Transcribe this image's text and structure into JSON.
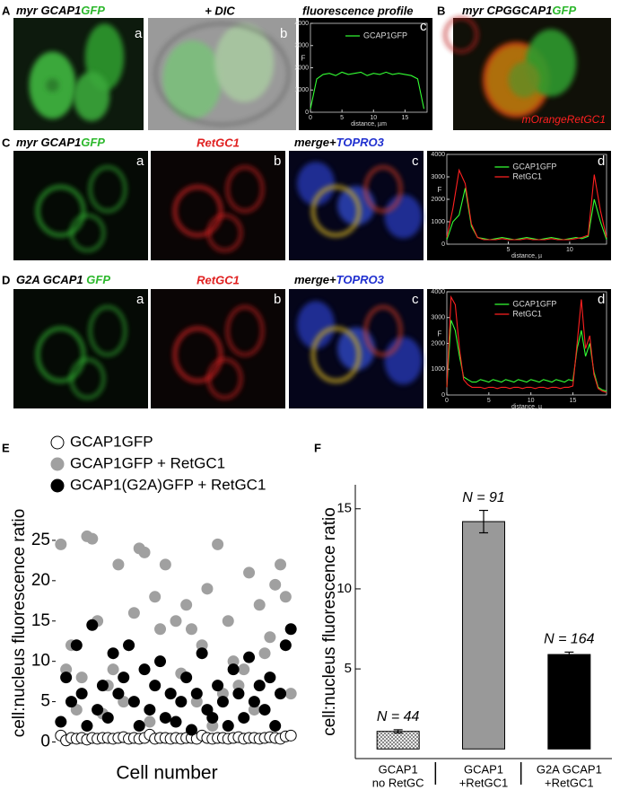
{
  "figure": {
    "panel_labels": [
      "A",
      "B",
      "C",
      "D",
      "E",
      "F"
    ],
    "row_a": {
      "titles": [
        [
          "myr GCAP1",
          "GFP"
        ],
        [
          "+ DIC"
        ],
        [
          "fluorescence profile"
        ]
      ],
      "letters": [
        "a",
        "b",
        "c"
      ]
    },
    "panel_b": {
      "title": [
        "myr CPGGCAP1",
        "GFP"
      ],
      "inset": "mOrangeRetGC1"
    },
    "row_c": {
      "titles": [
        [
          "myr GCAP1",
          "GFP"
        ],
        [
          "RetGC1"
        ],
        [
          "merge+",
          "TOPRO3"
        ]
      ],
      "letters": [
        "a",
        "b",
        "c",
        "d"
      ]
    },
    "row_d": {
      "titles": [
        [
          "G2A GCAP1 ",
          "GFP"
        ],
        [
          "RetGC1"
        ],
        [
          "merge+",
          "TOPRO3"
        ]
      ],
      "letters": [
        "a",
        "b",
        "c",
        "d"
      ]
    }
  },
  "chart_data": [
    {
      "type": "line",
      "xlabel": "distance, µm",
      "ylabel": "F",
      "x": [
        0,
        1,
        2,
        3,
        4,
        5,
        6,
        7,
        8,
        9,
        10,
        11,
        12,
        13,
        14,
        15,
        16,
        17,
        18
      ],
      "xlim": [
        0,
        18.5
      ],
      "xticks": [
        0,
        5,
        10,
        15
      ],
      "ylim": [
        0,
        4000
      ],
      "yticks": [
        0,
        1000,
        2000,
        3000,
        4000
      ],
      "series": [
        {
          "name": "GCAP1GFP",
          "color": "#33ff33",
          "values": [
            150,
            1500,
            1700,
            1750,
            1650,
            1800,
            1700,
            1750,
            1800,
            1650,
            1750,
            1700,
            1800,
            1700,
            1750,
            1700,
            1650,
            1500,
            150
          ]
        }
      ]
    },
    {
      "type": "line",
      "xlabel": "distance, µ",
      "ylabel": "F",
      "x": [
        0,
        0.5,
        1,
        1.5,
        2,
        2.5,
        3,
        3.5,
        4,
        4.5,
        5,
        5.5,
        6,
        6.5,
        7,
        7.5,
        8,
        8.5,
        9,
        9.5,
        10,
        10.5,
        11,
        11.5,
        12,
        12.5,
        13
      ],
      "xlim": [
        0,
        13
      ],
      "xticks": [
        5,
        10
      ],
      "ylim": [
        0,
        4000
      ],
      "yticks": [
        0,
        1000,
        2000,
        3000,
        4000
      ],
      "series": [
        {
          "name": "GCAP1GFP",
          "color": "#33ff33",
          "values": [
            200,
            1000,
            1300,
            2500,
            800,
            300,
            250,
            200,
            250,
            300,
            250,
            200,
            250,
            300,
            250,
            200,
            250,
            300,
            250,
            200,
            250,
            300,
            250,
            350,
            2000,
            1000,
            200
          ]
        },
        {
          "name": "RetGC1",
          "color": "#ff2020",
          "values": [
            300,
            1600,
            3300,
            2700,
            900,
            300,
            200,
            200,
            200,
            250,
            200,
            200,
            200,
            250,
            200,
            200,
            200,
            250,
            200,
            200,
            200,
            250,
            300,
            400,
            3100,
            1500,
            300
          ]
        }
      ]
    },
    {
      "type": "line",
      "xlabel": "distance, µ",
      "ylabel": "F",
      "x": [
        0,
        0.5,
        1,
        1.5,
        2,
        2.5,
        3,
        3.5,
        4,
        4.5,
        5,
        5.5,
        6,
        6.5,
        7,
        7.5,
        8,
        8.5,
        9,
        9.5,
        10,
        10.5,
        11,
        11.5,
        12,
        12.5,
        13,
        13.5,
        14,
        14.5,
        15,
        15.5,
        16,
        16.5,
        17,
        17.5,
        18,
        18.5,
        19
      ],
      "xlim": [
        0,
        19
      ],
      "xticks": [
        0,
        5,
        10,
        15
      ],
      "ylim": [
        0,
        4000
      ],
      "yticks": [
        0,
        1000,
        2000,
        3000,
        4000
      ],
      "series": [
        {
          "name": "GCAP1GFP",
          "color": "#33ff33",
          "values": [
            300,
            2900,
            2500,
            1500,
            700,
            600,
            500,
            500,
            600,
            550,
            500,
            600,
            550,
            500,
            600,
            550,
            500,
            600,
            550,
            500,
            600,
            550,
            500,
            600,
            550,
            500,
            600,
            550,
            500,
            600,
            550,
            1800,
            2500,
            1500,
            2000,
            900,
            300,
            200,
            150
          ]
        },
        {
          "name": "RetGC1",
          "color": "#ff2020",
          "values": [
            300,
            3800,
            3500,
            1800,
            600,
            400,
            300,
            300,
            300,
            250,
            300,
            300,
            250,
            300,
            300,
            250,
            300,
            300,
            250,
            300,
            300,
            250,
            300,
            300,
            250,
            300,
            300,
            250,
            300,
            300,
            350,
            2000,
            3700,
            1800,
            2300,
            800,
            250,
            150,
            100
          ]
        }
      ]
    },
    {
      "type": "scatter",
      "xlabel": "Cell number",
      "ylabel": "cell:nucleus fluorescence ratio",
      "legend": "top",
      "x": [
        1,
        2,
        3,
        4,
        5,
        6,
        7,
        8,
        9,
        10,
        11,
        12,
        13,
        14,
        15,
        16,
        17,
        18,
        19,
        20,
        21,
        22,
        23,
        24,
        25,
        26,
        27,
        28,
        29,
        30,
        31,
        32,
        33,
        34,
        35,
        36,
        37,
        38,
        39,
        40,
        41,
        42,
        43,
        44,
        45
      ],
      "xlim": [
        0,
        46
      ],
      "ylim": [
        -1.5,
        31
      ],
      "yticks": [
        0,
        5,
        10,
        15,
        20,
        25
      ],
      "series": [
        {
          "name": "GCAP1GFP",
          "color": "#ffffff",
          "values": [
            0.8,
            0.2,
            0.5,
            0.4,
            0.5,
            0.3,
            0.5,
            0.4,
            0.5,
            0.5,
            0.4,
            0.5,
            0.6,
            0.4,
            0.5,
            0.4,
            0.5,
            0.9,
            0.4,
            0.5,
            0.5,
            0.4,
            0.5,
            0.4,
            0.5,
            0.5,
            0.4,
            0.8,
            0.5,
            0.4,
            0.5,
            0.5,
            0.4,
            0.5,
            0.6,
            0.4,
            0.5,
            0.5,
            0.4,
            0.5,
            0.6,
            0.5,
            0.4,
            0.7,
            0.8
          ]
        },
        {
          "name": "GCAP1GFP + RetGC1",
          "color": "#a0a0a0",
          "values": [
            24.5,
            9,
            12,
            4,
            8,
            25.5,
            25.2,
            15,
            3.5,
            7,
            9,
            22,
            5,
            12,
            16,
            24,
            23.5,
            2.5,
            18,
            14,
            22,
            6,
            15,
            8.5,
            17,
            14,
            5,
            12,
            19,
            2,
            24.5,
            6,
            15,
            10,
            7,
            9,
            21,
            4,
            17,
            11,
            13,
            19.5,
            22,
            18,
            6
          ]
        },
        {
          "name": "GCAP1(G2A)GFP + RetGC1",
          "color": "#000000",
          "values": [
            2.5,
            8,
            5,
            12,
            6,
            2,
            14.5,
            4,
            7,
            3,
            11,
            6,
            8,
            12,
            5,
            2,
            9,
            4,
            7,
            10,
            3,
            6,
            2.5,
            5,
            8,
            1.5,
            6,
            11,
            4,
            3,
            7,
            5,
            2,
            9,
            6,
            3,
            10.5,
            5,
            7,
            4,
            8,
            2,
            6,
            12,
            14
          ]
        }
      ]
    },
    {
      "type": "bar",
      "ylabel": "cell:nucleus fluorescence ratio",
      "categories": [
        [
          "GCAP1",
          "no RetGC"
        ],
        [
          "GCAP1",
          "+RetGC1"
        ],
        [
          "G2A GCAP1",
          "+RetGC1"
        ]
      ],
      "values": [
        1.1,
        14.2,
        5.9
      ],
      "errors": [
        0.1,
        0.7,
        0.15
      ],
      "colors": [
        "#d0d0d0",
        "#999999",
        "#000000"
      ],
      "annotations": [
        "N = 44",
        "N = 91",
        "N = 164"
      ],
      "ylim": [
        -0.6,
        16.5
      ],
      "yticks": [
        5,
        10,
        15
      ]
    }
  ]
}
